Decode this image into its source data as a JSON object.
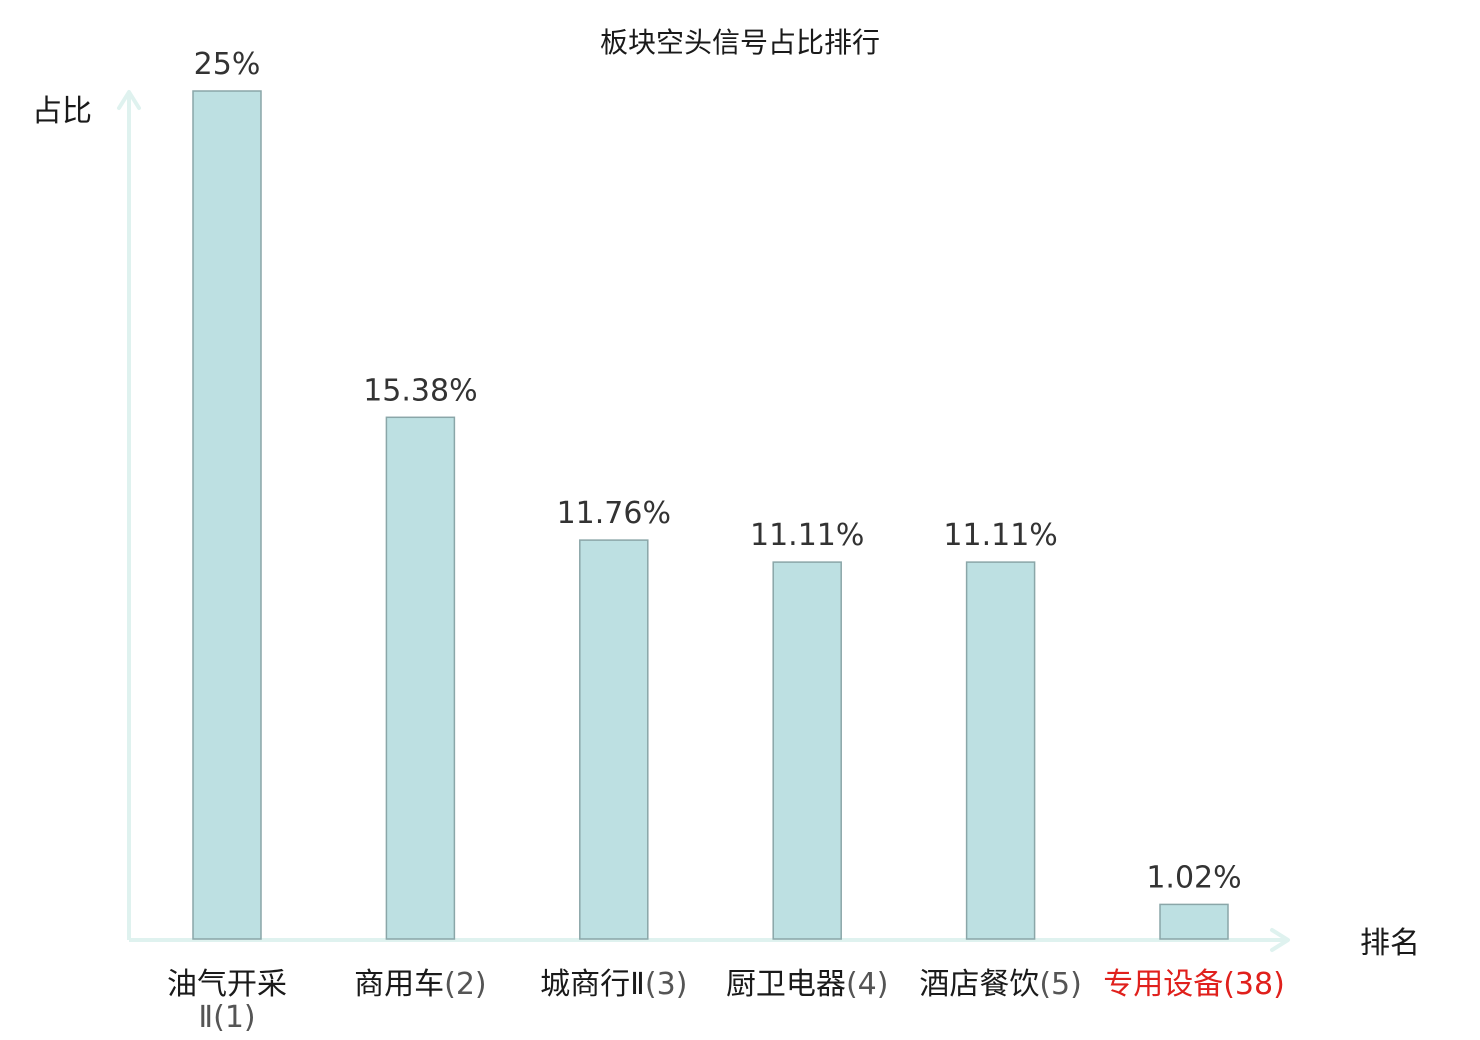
{
  "chart_data": {
    "type": "bar",
    "title": "板块空头信号占比排行",
    "xlabel": "排名",
    "ylabel": "占比",
    "categories": [
      {
        "name": "油气开采Ⅱ",
        "rank": "(1)",
        "highlight": false
      },
      {
        "name": "商用车",
        "rank": "(2)",
        "highlight": false
      },
      {
        "name": "城商行Ⅱ",
        "rank": "(3)",
        "highlight": false
      },
      {
        "name": "厨卫电器",
        "rank": "(4)",
        "highlight": false
      },
      {
        "name": "酒店餐饮",
        "rank": "(5)",
        "highlight": false
      },
      {
        "name": "专用设备",
        "rank": "(38)",
        "highlight": true
      }
    ],
    "values": [
      25,
      15.38,
      11.76,
      11.11,
      11.11,
      1.02
    ],
    "value_labels": [
      "25%",
      "15.38%",
      "11.76%",
      "11.11%",
      "11.11%",
      "1.02%"
    ],
    "ylim": [
      0,
      25
    ],
    "grid": false,
    "colors": {
      "bar_fill": "#bde0e2",
      "bar_stroke": "#8aa6a8",
      "axis": "#dff2ef",
      "highlight_text": "#e0201c",
      "text": "#1a1a1a",
      "rank_text": "#555555",
      "value_text": "#333333"
    }
  }
}
